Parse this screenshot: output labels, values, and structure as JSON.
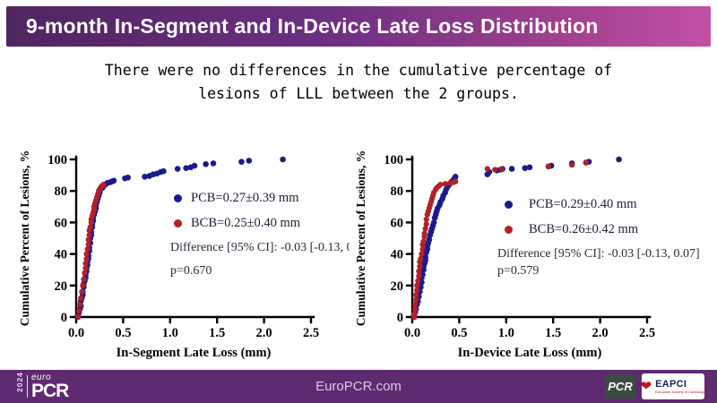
{
  "header": {
    "title": "9-month In-Segment and In-Device Late Loss Distribution"
  },
  "subtitle": {
    "line1": "There were no differences in the cumulative percentage of",
    "line2": "lesions of LLL between the 2 groups."
  },
  "chart_data": [
    {
      "type": "scatter",
      "title": "",
      "xlabel": "In-Segment Late Loss (mm)",
      "ylabel": "Cumulative Percent of Lesions, %",
      "xlim": [
        0,
        2.5
      ],
      "ylim": [
        0,
        100
      ],
      "xticks": [
        0.0,
        0.5,
        1.0,
        1.5,
        2.0,
        2.5
      ],
      "yticks": [
        0,
        20,
        40,
        60,
        80,
        100
      ],
      "grid": false,
      "legend_position": "inside-right",
      "series": [
        {
          "name": "PCB=0.27±0.39 mm",
          "color": "#1a1a8e",
          "points": [
            [
              0.02,
              0
            ],
            [
              0.02,
              1
            ],
            [
              0.03,
              3
            ],
            [
              0.04,
              5
            ],
            [
              0.05,
              7
            ],
            [
              0.05,
              10
            ],
            [
              0.06,
              12
            ],
            [
              0.07,
              14
            ],
            [
              0.07,
              16
            ],
            [
              0.08,
              19
            ],
            [
              0.08,
              21
            ],
            [
              0.09,
              23
            ],
            [
              0.1,
              25
            ],
            [
              0.1,
              27
            ],
            [
              0.11,
              29
            ],
            [
              0.11,
              31
            ],
            [
              0.12,
              33
            ],
            [
              0.12,
              35
            ],
            [
              0.13,
              37
            ],
            [
              0.13,
              39
            ],
            [
              0.14,
              42
            ],
            [
              0.14,
              44
            ],
            [
              0.15,
              47
            ],
            [
              0.15,
              50
            ],
            [
              0.16,
              52
            ],
            [
              0.16,
              54
            ],
            [
              0.17,
              57
            ],
            [
              0.17,
              59
            ],
            [
              0.18,
              61
            ],
            [
              0.18,
              63
            ],
            [
              0.19,
              65
            ],
            [
              0.2,
              67
            ],
            [
              0.21,
              69
            ],
            [
              0.21,
              71
            ],
            [
              0.22,
              73
            ],
            [
              0.23,
              75
            ],
            [
              0.24,
              77
            ],
            [
              0.25,
              79
            ],
            [
              0.26,
              81
            ],
            [
              0.28,
              82
            ],
            [
              0.29,
              83
            ],
            [
              0.31,
              84
            ],
            [
              0.33,
              85
            ],
            [
              0.36,
              85.5
            ],
            [
              0.38,
              86
            ],
            [
              0.4,
              86.5
            ],
            [
              0.52,
              88
            ],
            [
              0.55,
              88.5
            ],
            [
              0.73,
              89
            ],
            [
              0.78,
              89.5
            ],
            [
              0.82,
              90.5
            ],
            [
              0.86,
              91
            ],
            [
              0.9,
              92
            ],
            [
              0.93,
              92.5
            ],
            [
              1.08,
              94
            ],
            [
              1.17,
              94.5
            ],
            [
              1.22,
              95
            ],
            [
              1.26,
              96
            ],
            [
              1.38,
              97
            ],
            [
              1.46,
              97.5
            ],
            [
              1.76,
              98.5
            ],
            [
              1.84,
              99.2
            ],
            [
              2.2,
              100
            ]
          ]
        },
        {
          "name": "BCB=0.25±0.40 mm",
          "color": "#b22028",
          "points": [
            [
              0.02,
              0
            ],
            [
              0.03,
              4
            ],
            [
              0.04,
              8
            ],
            [
              0.05,
              12
            ],
            [
              0.06,
              16
            ],
            [
              0.07,
              20
            ],
            [
              0.08,
              24
            ],
            [
              0.09,
              28
            ],
            [
              0.1,
              31
            ],
            [
              0.1,
              34
            ],
            [
              0.11,
              37
            ],
            [
              0.11,
              40
            ],
            [
              0.12,
              43
            ],
            [
              0.13,
              46
            ],
            [
              0.13,
              49
            ],
            [
              0.14,
              52
            ],
            [
              0.14,
              55
            ],
            [
              0.15,
              57
            ],
            [
              0.16,
              60
            ],
            [
              0.16,
              62
            ],
            [
              0.17,
              64
            ],
            [
              0.18,
              66
            ],
            [
              0.19,
              68
            ],
            [
              0.19,
              70
            ],
            [
              0.2,
              72
            ],
            [
              0.21,
              74
            ],
            [
              0.22,
              76
            ],
            [
              0.23,
              78
            ],
            [
              0.24,
              80
            ],
            [
              0.25,
              81
            ],
            [
              0.26,
              82
            ],
            [
              0.27,
              83
            ],
            [
              0.29,
              84
            ]
          ]
        }
      ],
      "annotations": [
        "Difference [95% CI]: -0.03 [-0.13, 0.0",
        "p=0.670"
      ]
    },
    {
      "type": "scatter",
      "title": "",
      "xlabel": "In-Device Late Loss (mm)",
      "ylabel": "Cumulative Percent of Lesions, %",
      "xlim": [
        0,
        2.5
      ],
      "ylim": [
        0,
        100
      ],
      "xticks": [
        0.0,
        0.5,
        1.0,
        1.5,
        2.0,
        2.5
      ],
      "yticks": [
        0,
        20,
        40,
        60,
        80,
        100
      ],
      "grid": false,
      "legend_position": "inside-right",
      "series": [
        {
          "name": "PCB=0.29±0.40 mm",
          "color": "#1a1a8e",
          "points": [
            [
              0.02,
              0
            ],
            [
              0.02,
              1
            ],
            [
              0.03,
              3
            ],
            [
              0.04,
              5
            ],
            [
              0.05,
              8
            ],
            [
              0.06,
              10
            ],
            [
              0.07,
              13
            ],
            [
              0.08,
              16
            ],
            [
              0.09,
              19
            ],
            [
              0.1,
              22
            ],
            [
              0.1,
              25
            ],
            [
              0.11,
              27
            ],
            [
              0.12,
              30
            ],
            [
              0.12,
              32
            ],
            [
              0.13,
              34
            ],
            [
              0.14,
              36
            ],
            [
              0.14,
              38
            ],
            [
              0.15,
              41
            ],
            [
              0.16,
              43
            ],
            [
              0.16,
              45
            ],
            [
              0.17,
              47
            ],
            [
              0.18,
              49
            ],
            [
              0.19,
              52
            ],
            [
              0.2,
              54
            ],
            [
              0.21,
              56
            ],
            [
              0.22,
              58
            ],
            [
              0.23,
              60
            ],
            [
              0.24,
              63
            ],
            [
              0.25,
              65
            ],
            [
              0.26,
              67
            ],
            [
              0.27,
              69
            ],
            [
              0.29,
              71
            ],
            [
              0.3,
              73
            ],
            [
              0.32,
              75
            ],
            [
              0.33,
              77
            ],
            [
              0.35,
              79
            ],
            [
              0.36,
              81
            ],
            [
              0.38,
              83
            ],
            [
              0.4,
              84.5
            ],
            [
              0.42,
              86
            ],
            [
              0.44,
              87
            ],
            [
              0.45,
              88
            ],
            [
              0.46,
              89
            ],
            [
              0.8,
              90.5
            ],
            [
              0.82,
              92
            ],
            [
              0.9,
              93
            ],
            [
              0.94,
              93.5
            ],
            [
              0.96,
              94
            ],
            [
              1.06,
              94
            ],
            [
              1.2,
              94.5
            ],
            [
              1.25,
              95
            ],
            [
              1.45,
              95.5
            ],
            [
              1.48,
              96
            ],
            [
              1.7,
              97.5
            ],
            [
              1.85,
              98
            ],
            [
              1.88,
              98.5
            ],
            [
              2.2,
              100
            ]
          ]
        },
        {
          "name": "BCB=0.26±0.42 mm",
          "color": "#b22028",
          "points": [
            [
              0.02,
              0
            ],
            [
              0.02,
              2
            ],
            [
              0.03,
              5
            ],
            [
              0.03,
              8
            ],
            [
              0.04,
              11
            ],
            [
              0.04,
              14
            ],
            [
              0.05,
              17
            ],
            [
              0.05,
              20
            ],
            [
              0.06,
              23
            ],
            [
              0.07,
              26
            ],
            [
              0.07,
              29
            ],
            [
              0.08,
              32
            ],
            [
              0.08,
              35
            ],
            [
              0.09,
              37
            ],
            [
              0.1,
              40
            ],
            [
              0.11,
              43
            ],
            [
              0.11,
              46
            ],
            [
              0.12,
              48
            ],
            [
              0.13,
              51
            ],
            [
              0.13,
              53
            ],
            [
              0.14,
              56
            ],
            [
              0.15,
              59
            ],
            [
              0.15,
              62
            ],
            [
              0.16,
              65
            ],
            [
              0.17,
              67
            ],
            [
              0.18,
              69
            ],
            [
              0.19,
              71
            ],
            [
              0.2,
              73
            ],
            [
              0.21,
              75
            ],
            [
              0.22,
              77
            ],
            [
              0.23,
              79
            ],
            [
              0.25,
              81
            ],
            [
              0.26,
              82
            ],
            [
              0.28,
              83
            ],
            [
              0.3,
              84
            ],
            [
              0.35,
              84.5
            ],
            [
              0.4,
              85
            ],
            [
              0.44,
              85.5
            ],
            [
              0.46,
              86
            ],
            [
              0.8,
              94
            ],
            [
              0.88,
              93.5
            ],
            [
              0.95,
              94
            ],
            [
              1.45,
              95.5
            ],
            [
              1.7,
              96.5
            ],
            [
              1.85,
              98
            ]
          ]
        }
      ],
      "annotations": [
        "Difference [95% CI]: -0.03 [-0.13, 0.07]",
        "p=0.579"
      ]
    }
  ],
  "footer": {
    "year": "2024",
    "euro": "euro",
    "pcr": "PCR",
    "site": "EuroPCR.com",
    "pcr_badge": "PCR",
    "eapci": "EAPCI",
    "eapci_tagline": "European Society of Cardiology"
  },
  "colors": {
    "header_gradient_start": "#4f2560",
    "header_gradient_end": "#c250a4",
    "footer_purple": "#5e2a70",
    "pcb_blue": "#1a1a8e",
    "bcb_red": "#b22028"
  }
}
